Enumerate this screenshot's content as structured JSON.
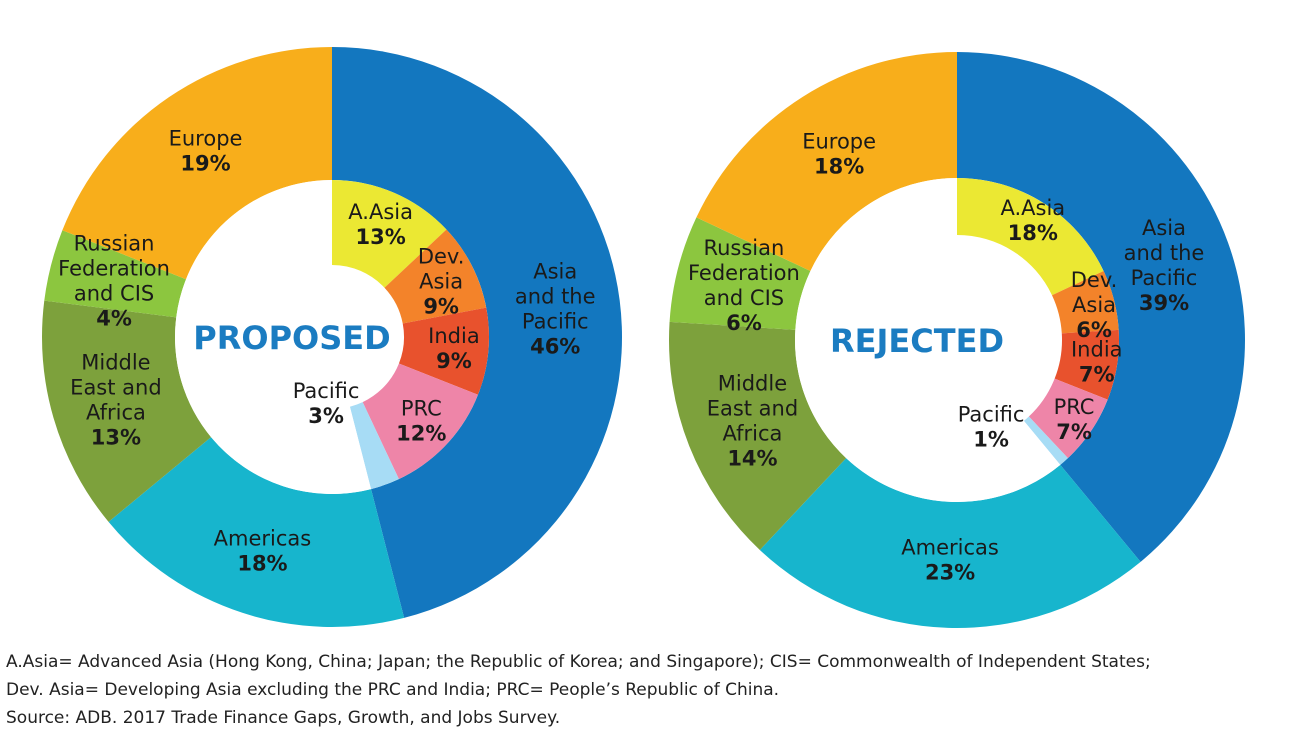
{
  "chart_data": [
    {
      "type": "donut",
      "center_title": "PROPOSED",
      "outer": [
        {
          "label": [
            "Asia",
            "and the",
            "Pacific"
          ],
          "value": 46,
          "value_label": "46%",
          "color": "#1377bf"
        },
        {
          "label": [
            "Americas"
          ],
          "value": 18,
          "value_label": "18%",
          "color": "#17b5cd"
        },
        {
          "label": [
            "Middle",
            "East and",
            "Africa"
          ],
          "value": 13,
          "value_label": "13%",
          "color": "#7da13c"
        },
        {
          "label": [
            "Russian",
            "Federation",
            "and CIS"
          ],
          "value": 4,
          "value_label": "4%",
          "color": "#8cc63f"
        },
        {
          "label": [
            "Europe"
          ],
          "value": 19,
          "value_label": "19%",
          "color": "#f8ae1b"
        }
      ],
      "inner": [
        {
          "label": [
            "A.Asia"
          ],
          "value": 13,
          "value_label": "13%",
          "color": "#ebe833"
        },
        {
          "label": [
            "Dev.",
            "Asia"
          ],
          "value": 9,
          "value_label": "9%",
          "color": "#f3832a"
        },
        {
          "label": [
            "India"
          ],
          "value": 9,
          "value_label": "9%",
          "color": "#e8522d"
        },
        {
          "label": [
            "PRC"
          ],
          "value": 12,
          "value_label": "12%",
          "color": "#ee85a8"
        },
        {
          "label": [
            "Pacific"
          ],
          "value": 3,
          "value_label": "3%",
          "color": "#a7dcf5"
        }
      ]
    },
    {
      "type": "donut",
      "center_title": "REJECTED",
      "outer": [
        {
          "label": [
            "Asia",
            "and the",
            "Pacific"
          ],
          "value": 39,
          "value_label": "39%",
          "color": "#1377bf"
        },
        {
          "label": [
            "Americas"
          ],
          "value": 23,
          "value_label": "23%",
          "color": "#17b5cd"
        },
        {
          "label": [
            "Middle",
            "East and",
            "Africa"
          ],
          "value": 14,
          "value_label": "14%",
          "color": "#7da13c"
        },
        {
          "label": [
            "Russian",
            "Federation",
            "and CIS"
          ],
          "value": 6,
          "value_label": "6%",
          "color": "#8cc63f"
        },
        {
          "label": [
            "Europe"
          ],
          "value": 18,
          "value_label": "18%",
          "color": "#f8ae1b"
        }
      ],
      "inner": [
        {
          "label": [
            "A.Asia"
          ],
          "value": 18,
          "value_label": "18%",
          "color": "#ebe833"
        },
        {
          "label": [
            "Dev.",
            "Asia"
          ],
          "value": 6,
          "value_label": "6%",
          "color": "#f3832a"
        },
        {
          "label": [
            "India"
          ],
          "value": 7,
          "value_label": "7%",
          "color": "#e8522d"
        },
        {
          "label": [
            "PRC"
          ],
          "value": 7,
          "value_label": "7%",
          "color": "#ee85a8"
        },
        {
          "label": [
            "Pacific"
          ],
          "value": 1,
          "value_label": "1%",
          "color": "#a7dcf5"
        }
      ]
    }
  ],
  "footnotes": {
    "line1": "A.Asia= Advanced Asia (Hong Kong, China; Japan; the Republic of Korea; and Singapore); CIS= Commonwealth of Independent States;",
    "line2": "Dev. Asia= Developing Asia excluding the PRC and India; PRC= People’s Republic of China.",
    "line3": "Source: ADB. 2017 Trade Finance Gaps, Growth, and Jobs Survey."
  }
}
